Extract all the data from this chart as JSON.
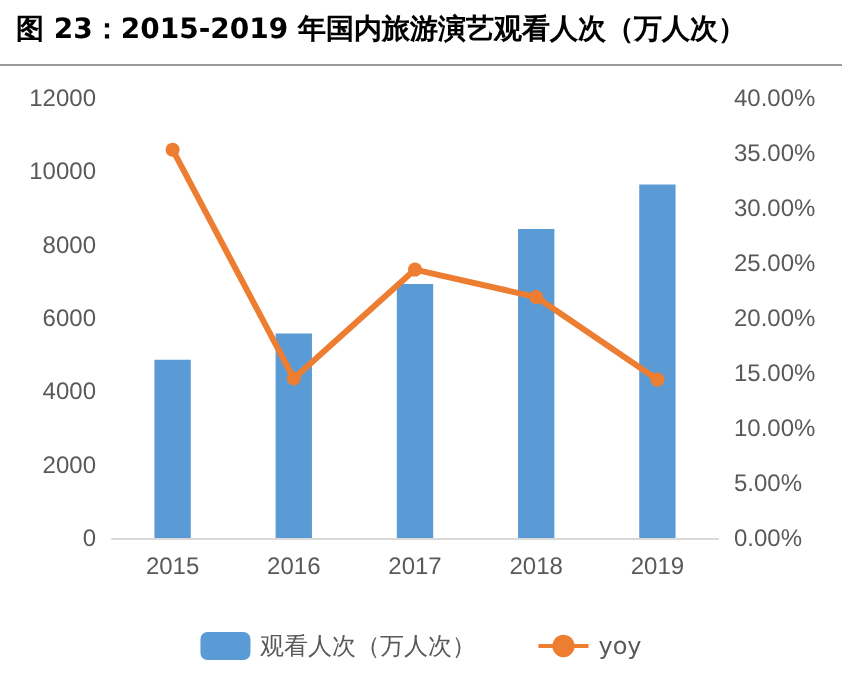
{
  "chart_data": {
    "type": "bar",
    "title": "图 23：2015-2019 年国内旅游演艺观看人次（万人次）",
    "categories": [
      "2015",
      "2016",
      "2017",
      "2018",
      "2019"
    ],
    "series": [
      {
        "name": "观看人次（万人次）",
        "color": "#5b9bd5",
        "values": [
          4860,
          5580,
          6930,
          8430,
          9640
        ]
      },
      {
        "name": "yoy",
        "type": "line",
        "axis": "y2",
        "color": "#ed7d31",
        "marker": "circle",
        "values": [
          35.3,
          14.5,
          24.4,
          21.9,
          14.4
        ]
      }
    ],
    "ylim": [
      0,
      12000
    ],
    "yticks": [
      0,
      2000,
      4000,
      6000,
      8000,
      10000,
      12000
    ],
    "y2lim": [
      0,
      40
    ],
    "y2ticks": [
      {
        "value": 0,
        "label": "0.00%"
      },
      {
        "value": 5,
        "label": "5.00%"
      },
      {
        "value": 10,
        "label": "10.00%"
      },
      {
        "value": 15,
        "label": "15.00%"
      },
      {
        "value": 20,
        "label": "20.00%"
      },
      {
        "value": 25,
        "label": "25.00%"
      },
      {
        "value": 30,
        "label": "30.00%"
      },
      {
        "value": 35,
        "label": "35.00%"
      },
      {
        "value": 40,
        "label": "40.00%"
      }
    ],
    "legend": "bottom",
    "grid": false
  }
}
